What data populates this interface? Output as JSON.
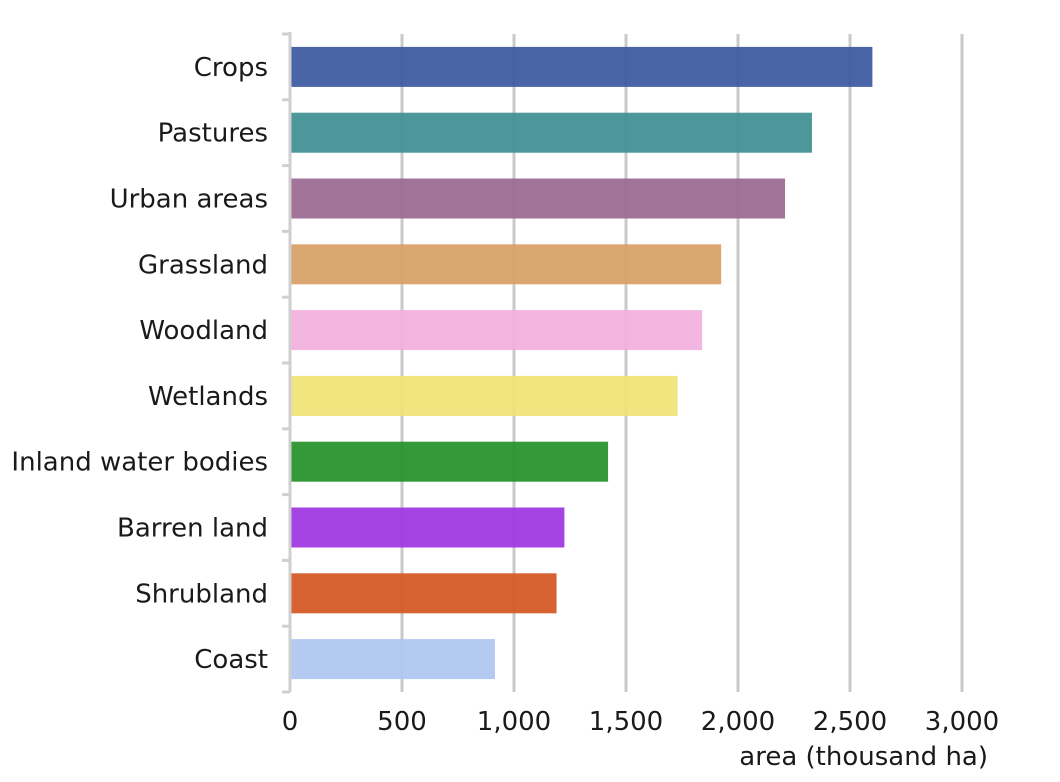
{
  "chart_data": {
    "type": "bar",
    "orientation": "horizontal",
    "categories": [
      "Crops",
      "Pastures",
      "Urban areas",
      "Grassland",
      "Woodland",
      "Wetlands",
      "Inland water bodies",
      "Barren land",
      "Shrubland",
      "Coast"
    ],
    "values": [
      2600,
      2330,
      2210,
      1925,
      1840,
      1730,
      1420,
      1225,
      1190,
      915
    ],
    "colors": [
      "#3b58a0",
      "#3c8e91",
      "#9b6890",
      "#d79f66",
      "#f2b0dd",
      "#f1e273",
      "#229028",
      "#9e33e2",
      "#d3561f",
      "#afc6ef"
    ],
    "title": "",
    "xlabel": "area (thousand ha)",
    "ylabel": "",
    "xlim": [
      0,
      3000
    ],
    "xticks": [
      0,
      500,
      1000,
      1500,
      2000,
      2500,
      3000
    ],
    "xtick_labels": [
      "0",
      "500",
      "1,000",
      "1,500",
      "2,000",
      "2,500",
      "3,000"
    ],
    "grid": "vertical"
  }
}
